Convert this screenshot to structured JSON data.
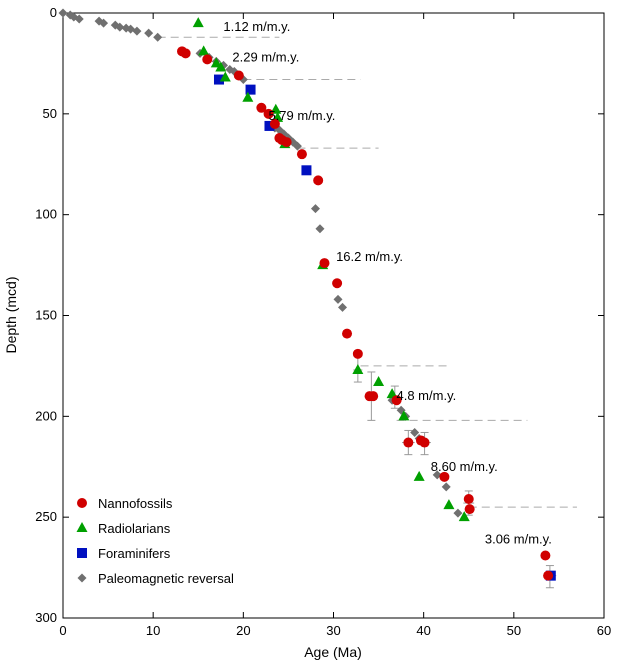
{
  "chart_data": {
    "type": "scatter",
    "xlabel": "Age (Ma)",
    "ylabel": "Depth (mcd)",
    "xlim": [
      0,
      60
    ],
    "ylim": [
      0,
      300
    ],
    "y_inverted": true,
    "x_ticks": [
      0,
      10,
      20,
      30,
      40,
      50,
      60
    ],
    "y_ticks": [
      0,
      50,
      100,
      150,
      200,
      250,
      300
    ],
    "grid": false,
    "legend_position": "bottom-left",
    "series": [
      {
        "name": "Nannofossils",
        "marker": "circle",
        "color": "#d00000",
        "points": [
          [
            13.2,
            19
          ],
          [
            13.6,
            20
          ],
          [
            16,
            23
          ],
          [
            19.5,
            31
          ],
          [
            22,
            47
          ],
          [
            22.8,
            50
          ],
          [
            23.5,
            55
          ],
          [
            24,
            62
          ],
          [
            24.3,
            63
          ],
          [
            24.8,
            64
          ],
          [
            26.5,
            70
          ],
          [
            28.3,
            83
          ],
          [
            29,
            124
          ],
          [
            30.4,
            134
          ],
          [
            31.5,
            159
          ],
          [
            32.7,
            169
          ],
          [
            34,
            190
          ],
          [
            34.4,
            190
          ],
          [
            37,
            192
          ],
          [
            38.3,
            213
          ],
          [
            39.7,
            212
          ],
          [
            40.1,
            213
          ],
          [
            42.3,
            230
          ],
          [
            45,
            241
          ],
          [
            45.1,
            246
          ],
          [
            53.5,
            269
          ],
          [
            53.8,
            279
          ]
        ]
      },
      {
        "name": "Radiolarians",
        "marker": "triangle",
        "color": "#00a000",
        "points": [
          [
            15,
            5
          ],
          [
            15.6,
            19
          ],
          [
            17,
            25
          ],
          [
            17.5,
            27
          ],
          [
            18,
            32
          ],
          [
            20.5,
            42
          ],
          [
            23.6,
            48
          ],
          [
            23.8,
            52
          ],
          [
            24.6,
            65
          ],
          [
            28.8,
            125
          ],
          [
            32.7,
            177
          ],
          [
            35,
            183
          ],
          [
            36.5,
            189
          ],
          [
            37.8,
            200
          ],
          [
            39.5,
            230
          ],
          [
            42.8,
            244
          ],
          [
            44.5,
            250
          ]
        ]
      },
      {
        "name": "Foraminifers",
        "marker": "square",
        "color": "#0010c0",
        "points": [
          [
            17.3,
            33
          ],
          [
            20.8,
            38
          ],
          [
            22.9,
            56
          ],
          [
            27,
            78
          ],
          [
            54.1,
            279
          ]
        ]
      },
      {
        "name": "Paleomagnetic reversal",
        "marker": "diamond",
        "color": "#707070",
        "points": [
          [
            0,
            0
          ],
          [
            0.8,
            1
          ],
          [
            1.2,
            2
          ],
          [
            1.8,
            3
          ],
          [
            4,
            4
          ],
          [
            4.5,
            5
          ],
          [
            5.8,
            6
          ],
          [
            6.3,
            7
          ],
          [
            7,
            7.5
          ],
          [
            7.5,
            8
          ],
          [
            8.2,
            9
          ],
          [
            9.5,
            10
          ],
          [
            10.5,
            12
          ],
          [
            15.2,
            20
          ],
          [
            16.2,
            22
          ],
          [
            17,
            24
          ],
          [
            17.8,
            26
          ],
          [
            18.5,
            28
          ],
          [
            19,
            29
          ],
          [
            19.5,
            31
          ],
          [
            20,
            33
          ],
          [
            23.5,
            57
          ],
          [
            24,
            58
          ],
          [
            24.5,
            60
          ],
          [
            25,
            62
          ],
          [
            25.5,
            64
          ],
          [
            26,
            66
          ],
          [
            27,
            78
          ],
          [
            28,
            97
          ],
          [
            28.5,
            107
          ],
          [
            30.5,
            142
          ],
          [
            31,
            146
          ],
          [
            36.5,
            192
          ],
          [
            37.5,
            197
          ],
          [
            38,
            200
          ],
          [
            39,
            208
          ],
          [
            39.5,
            211
          ],
          [
            40,
            212
          ],
          [
            41.5,
            229
          ],
          [
            42.5,
            235
          ],
          [
            43.8,
            248
          ]
        ]
      }
    ],
    "error_bars": [
      {
        "x": 34.2,
        "y": 190,
        "ymin": 178,
        "ymax": 202,
        "xmin": 33.5,
        "xmax": 34.9
      },
      {
        "x": 38.3,
        "y": 213,
        "ymin": 207,
        "ymax": 219,
        "xmin": 37.6,
        "xmax": 39.0
      },
      {
        "x": 40.1,
        "y": 213,
        "ymin": 208,
        "ymax": 219,
        "xmin": 39.4,
        "xmax": 40.8
      },
      {
        "x": 45.0,
        "y": 243,
        "ymin": 237,
        "ymax": 249,
        "xmin": 44.4,
        "xmax": 45.6
      },
      {
        "x": 54.0,
        "y": 279,
        "ymin": 274,
        "ymax": 285,
        "xmin": 53.3,
        "xmax": 54.7
      },
      {
        "x": 36.8,
        "y": 190,
        "ymin": 185,
        "ymax": 196,
        "xmin": 36.2,
        "xmax": 37.4
      },
      {
        "x": 32.7,
        "y": 177,
        "ymin": 170,
        "ymax": 183,
        "xmin": 32.2,
        "xmax": 33.2
      }
    ],
    "rate_segments": [
      {
        "label": "1.12 m/m.y.",
        "label_x": 21.5,
        "label_y": 7,
        "dashed_y": 12,
        "x_from": 10.5,
        "x_to": 24
      },
      {
        "label": "2.29 m/m.y.",
        "label_x": 22.5,
        "label_y": 22,
        "dashed_y": 33,
        "x_from": 20,
        "x_to": 33
      },
      {
        "label": "5.79 m/m.y.",
        "label_x": 26.5,
        "label_y": 51,
        "dashed_y": 67,
        "x_from": 26,
        "x_to": 35
      },
      {
        "label": "16.2 m/m.y.",
        "label_x": 34,
        "label_y": 121,
        "dashed_y": null,
        "x_from": null,
        "x_to": null
      },
      {
        "label": "4.8 m/m.y.",
        "label_x": 40.3,
        "label_y": 190,
        "dashed_y_top": 175,
        "dashed_y_bottom": 202,
        "x_from": 33,
        "x_to": 43,
        "x_to_bottom": 51.5
      },
      {
        "label": "8.60 m/m.y.",
        "label_x": 44.5,
        "label_y": 225,
        "dashed_y": 245,
        "x_from": 45,
        "x_to": 57
      },
      {
        "label": "3.06 m/m.y.",
        "label_x": 50.5,
        "label_y": 261,
        "dashed_y": null,
        "x_from": null,
        "x_to": null
      }
    ]
  }
}
